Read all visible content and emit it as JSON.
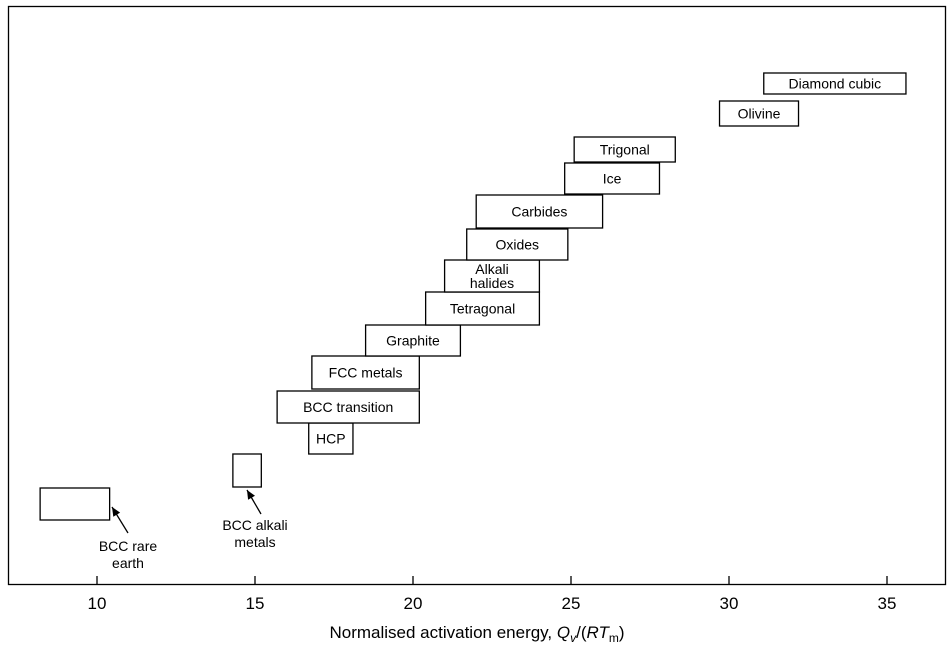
{
  "chart_data": {
    "type": "range-boxes",
    "xlabel": {
      "prefix": "Normalised activation energy, ",
      "q": "Q",
      "q_sub": "v",
      "middle": "/(",
      "rt": "RT",
      "rt_sub": "m",
      "suffix": ")"
    },
    "xlim": [
      7,
      37
    ],
    "xticks": [
      10,
      15,
      20,
      25,
      30,
      35
    ],
    "grid": false,
    "legend": "none",
    "classes": [
      {
        "id": "bcc-rare-earth",
        "label": "",
        "x_min": 8.2,
        "x_max": 10.4,
        "lines": [],
        "annotation": [
          "BCC rare",
          "earth"
        ]
      },
      {
        "id": "bcc-alkali-metals",
        "label": "",
        "x_min": 14.3,
        "x_max": 15.2,
        "lines": [],
        "annotation": [
          "BCC alkali",
          "metals"
        ]
      },
      {
        "id": "hcp",
        "label": "HCP",
        "x_min": 16.7,
        "x_max": 18.1,
        "lines": [
          "HCP"
        ]
      },
      {
        "id": "bcc-transition",
        "label": "BCC transition",
        "x_min": 15.7,
        "x_max": 20.2,
        "lines": [
          "BCC transition"
        ]
      },
      {
        "id": "fcc-metals",
        "label": "FCC metals",
        "x_min": 16.8,
        "x_max": 20.2,
        "lines": [
          "FCC metals"
        ]
      },
      {
        "id": "graphite",
        "label": "Graphite",
        "x_min": 18.5,
        "x_max": 21.5,
        "lines": [
          "Graphite"
        ]
      },
      {
        "id": "tetragonal",
        "label": "Tetragonal",
        "x_min": 20.4,
        "x_max": 24.0,
        "lines": [
          "Tetragonal"
        ]
      },
      {
        "id": "alkali-halides",
        "label": "Alkali halides",
        "x_min": 21.0,
        "x_max": 24.0,
        "lines": [
          "Alkali",
          "halides"
        ]
      },
      {
        "id": "oxides",
        "label": "Oxides",
        "x_min": 21.7,
        "x_max": 24.9,
        "lines": [
          "Oxides"
        ]
      },
      {
        "id": "carbides",
        "label": "Carbides",
        "x_min": 22.0,
        "x_max": 26.0,
        "lines": [
          "Carbides"
        ]
      },
      {
        "id": "ice",
        "label": "Ice",
        "x_min": 24.8,
        "x_max": 27.8,
        "lines": [
          "Ice"
        ]
      },
      {
        "id": "trigonal",
        "label": "Trigonal",
        "x_min": 25.1,
        "x_max": 28.3,
        "lines": [
          "Trigonal"
        ]
      },
      {
        "id": "olivine",
        "label": "Olivine",
        "x_min": 29.7,
        "x_max": 32.2,
        "lines": [
          "Olivine"
        ]
      },
      {
        "id": "diamond-cubic",
        "label": "Diamond cubic",
        "x_min": 31.1,
        "x_max": 35.6,
        "lines": [
          "Diamond cubic"
        ]
      }
    ]
  }
}
